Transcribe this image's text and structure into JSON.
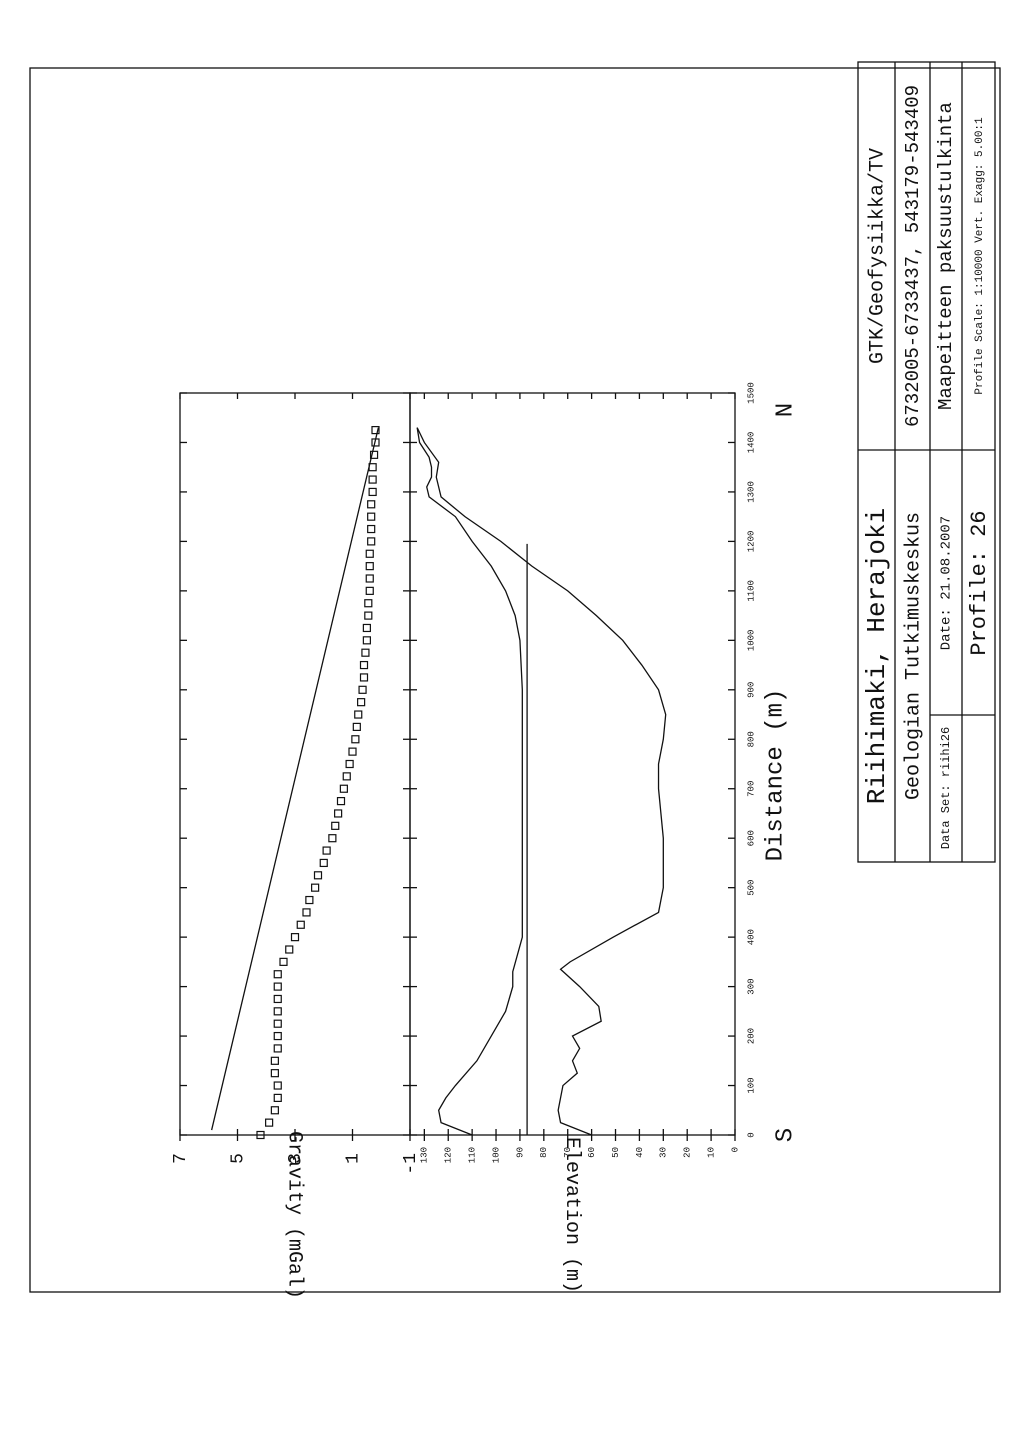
{
  "chart_data": [
    {
      "type": "line",
      "y_label": "Gravity (mGal)",
      "xlim": [
        0,
        1500
      ],
      "ylim": [
        -1,
        7
      ],
      "yticks": [
        7,
        5,
        3,
        1,
        -1
      ],
      "series": [
        {
          "marker": "square",
          "color": "#111",
          "x": [
            0,
            25,
            50,
            75,
            100,
            125,
            150,
            175,
            200,
            225,
            250,
            275,
            300,
            325,
            350,
            375,
            400,
            425,
            450,
            475,
            500,
            525,
            550,
            575,
            600,
            625,
            650,
            675,
            700,
            725,
            750,
            775,
            800,
            825,
            850,
            875,
            900,
            925,
            950,
            975,
            1000,
            1025,
            1050,
            1075,
            1100,
            1125,
            1150,
            1175,
            1200,
            1225,
            1250,
            1275,
            1300,
            1325,
            1350,
            1375,
            1400,
            1425
          ],
          "values": [
            4.2,
            3.9,
            3.7,
            3.6,
            3.6,
            3.7,
            3.7,
            3.6,
            3.6,
            3.6,
            3.6,
            3.6,
            3.6,
            3.6,
            3.4,
            3.2,
            3.0,
            2.8,
            2.6,
            2.5,
            2.3,
            2.2,
            2.0,
            1.9,
            1.7,
            1.6,
            1.5,
            1.4,
            1.3,
            1.2,
            1.1,
            1.0,
            0.9,
            0.85,
            0.8,
            0.7,
            0.65,
            0.6,
            0.6,
            0.55,
            0.5,
            0.5,
            0.45,
            0.45,
            0.4,
            0.4,
            0.4,
            0.4,
            0.35,
            0.35,
            0.35,
            0.35,
            0.3,
            0.3,
            0.3,
            0.25,
            0.2,
            0.2
          ]
        },
        {
          "color": "#111",
          "x": [
            10,
            1430
          ],
          "values": [
            5.9,
            0.1
          ]
        }
      ]
    },
    {
      "type": "line",
      "x_label": "Distance (m)",
      "y_label": "Elevation (m)",
      "start_label": "S",
      "end_label": "N",
      "xlim": [
        0,
        1500
      ],
      "xticks": [
        0,
        100,
        200,
        300,
        400,
        500,
        600,
        700,
        800,
        900,
        1000,
        1100,
        1200,
        1300,
        1400,
        1500
      ],
      "ylim": [
        0,
        136
      ],
      "yticks": [
        0,
        10,
        20,
        30,
        40,
        50,
        60,
        70,
        80,
        90,
        100,
        110,
        120,
        130
      ],
      "series": [
        {
          "color": "#111",
          "x": [
            0,
            25,
            50,
            75,
            100,
            150,
            200,
            250,
            300,
            330,
            400,
            500,
            700,
            900,
            1000,
            1050,
            1100,
            1150,
            1200,
            1250,
            1290,
            1310,
            1330,
            1350,
            1370,
            1400,
            1430
          ],
          "values": [
            110,
            123,
            124,
            121,
            117,
            108,
            102,
            96,
            93,
            93,
            89,
            89,
            89,
            89,
            90,
            92,
            96,
            102,
            110,
            117,
            128,
            129,
            127,
            127,
            128,
            132,
            133
          ]
        },
        {
          "color": "#111",
          "x": [
            0,
            1195
          ],
          "values": [
            87,
            87
          ]
        },
        {
          "color": "#111",
          "x": [
            0,
            25,
            50,
            100,
            125,
            150,
            175,
            200,
            230,
            260,
            300,
            335,
            350,
            400,
            450,
            500,
            600,
            650,
            700,
            750,
            800,
            850,
            900,
            950,
            1000,
            1050,
            1100,
            1150,
            1200,
            1250,
            1290,
            1330,
            1360,
            1400,
            1430
          ],
          "values": [
            60,
            73,
            74,
            72,
            66,
            68,
            65,
            68,
            56,
            57,
            65,
            73,
            69,
            51,
            32,
            30,
            30,
            31,
            32,
            32,
            30,
            29,
            32,
            39,
            47,
            58,
            70,
            85,
            98,
            113,
            123,
            125,
            124,
            130,
            133
          ]
        }
      ]
    }
  ],
  "title_block": {
    "title": "Riihimaki, Herajoki",
    "agency": "GTK/Geofysiikka/TV",
    "organization": "Geologian Tutkimuskeskus",
    "coordinates": "6732005-6733437, 543179-543409",
    "data_set": "Data Set: riihi26",
    "date": "Date: 21.08.2007",
    "description": "Maapeitteen paksuustulkinta",
    "profile": "Profile: 26",
    "scale": "Profile Scale: 1:10000 Vert. Exagg: 5.00:1"
  }
}
